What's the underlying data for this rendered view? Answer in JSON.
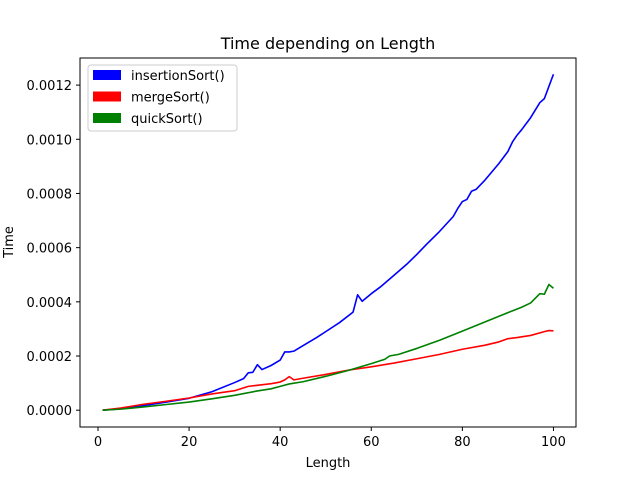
{
  "chart_data": {
    "type": "line",
    "title": "Time depending on Length",
    "xlabel": "Length",
    "ylabel": "Time",
    "xlim": [
      -3.95,
      104.95
    ],
    "ylim": [
      -6.2e-05,
      0.0013
    ],
    "xticks": [
      0,
      20,
      40,
      60,
      80,
      100
    ],
    "xtick_labels": [
      "0",
      "20",
      "40",
      "60",
      "80",
      "100"
    ],
    "yticks": [
      0,
      0.0002,
      0.0004,
      0.0006,
      0.0008,
      0.001,
      0.0012
    ],
    "ytick_labels": [
      "0.0000",
      "0.0002",
      "0.0004",
      "0.0006",
      "0.0008",
      "0.0010",
      "0.0012"
    ],
    "grid": false,
    "legend_position": "top-left",
    "series": [
      {
        "name": "insertionSort()",
        "color": "#0000ff",
        "points": [
          [
            1,
            0.0
          ],
          [
            5,
            5e-06
          ],
          [
            10,
            1.7e-05
          ],
          [
            15,
            3e-05
          ],
          [
            20,
            4.4e-05
          ],
          [
            25,
            6.8e-05
          ],
          [
            30,
            0.000102
          ],
          [
            32,
            0.000117
          ],
          [
            33,
            0.000138
          ],
          [
            34,
            0.00014
          ],
          [
            35,
            0.000168
          ],
          [
            36,
            0.00015
          ],
          [
            38,
            0.000165
          ],
          [
            40,
            0.000185
          ],
          [
            41,
            0.000215
          ],
          [
            42,
            0.000215
          ],
          [
            43,
            0.000218
          ],
          [
            45,
            0.000238
          ],
          [
            48,
            0.000268
          ],
          [
            50,
            0.00029
          ],
          [
            53,
            0.000323
          ],
          [
            56,
            0.000362
          ],
          [
            57,
            0.000426
          ],
          [
            58,
            0.000402
          ],
          [
            60,
            0.00043
          ],
          [
            62,
            0.000455
          ],
          [
            65,
            0.000498
          ],
          [
            68,
            0.000542
          ],
          [
            70,
            0.000575
          ],
          [
            72,
            0.00061
          ],
          [
            75,
            0.00066
          ],
          [
            78,
            0.000715
          ],
          [
            79,
            0.000745
          ],
          [
            80,
            0.00077
          ],
          [
            81,
            0.000778
          ],
          [
            82,
            0.000808
          ],
          [
            83,
            0.000815
          ],
          [
            85,
            0.00085
          ],
          [
            88,
            0.00091
          ],
          [
            90,
            0.000955
          ],
          [
            91,
            0.00099
          ],
          [
            92,
            0.001015
          ],
          [
            93,
            0.001035
          ],
          [
            95,
            0.00108
          ],
          [
            97,
            0.001135
          ],
          [
            98,
            0.00115
          ],
          [
            99,
            0.001195
          ],
          [
            100,
            0.00124
          ]
        ]
      },
      {
        "name": "mergeSort()",
        "color": "#ff0000",
        "points": [
          [
            1,
            0.0
          ],
          [
            5,
            8e-06
          ],
          [
            10,
            2.2e-05
          ],
          [
            15,
            3.3e-05
          ],
          [
            20,
            4.5e-05
          ],
          [
            25,
            6e-05
          ],
          [
            30,
            7.2e-05
          ],
          [
            33,
            8.8e-05
          ],
          [
            35,
            9.2e-05
          ],
          [
            38,
            9.8e-05
          ],
          [
            40,
            0.000104
          ],
          [
            41,
            0.000112
          ],
          [
            42,
            0.000124
          ],
          [
            43,
            0.000112
          ],
          [
            45,
            0.000118
          ],
          [
            50,
            0.000132
          ],
          [
            55,
            0.000148
          ],
          [
            60,
            0.00016
          ],
          [
            65,
            0.000174
          ],
          [
            70,
            0.00019
          ],
          [
            75,
            0.000206
          ],
          [
            80,
            0.000225
          ],
          [
            85,
            0.00024
          ],
          [
            88,
            0.000252
          ],
          [
            90,
            0.000264
          ],
          [
            92,
            0.000268
          ],
          [
            95,
            0.000276
          ],
          [
            98,
            0.00029
          ],
          [
            99,
            0.000294
          ],
          [
            100,
            0.000293
          ]
        ]
      },
      {
        "name": "quickSort()",
        "color": "#008000",
        "points": [
          [
            1,
            0.0
          ],
          [
            5,
            4e-06
          ],
          [
            10,
            1.2e-05
          ],
          [
            15,
            2.1e-05
          ],
          [
            20,
            3e-05
          ],
          [
            25,
            4.2e-05
          ],
          [
            30,
            5.5e-05
          ],
          [
            35,
            7.1e-05
          ],
          [
            38,
            7.9e-05
          ],
          [
            40,
            8.8e-05
          ],
          [
            42,
            9.7e-05
          ],
          [
            45,
            0.000105
          ],
          [
            50,
            0.000125
          ],
          [
            55,
            0.000147
          ],
          [
            60,
            0.000172
          ],
          [
            63,
            0.000188
          ],
          [
            64,
            0.0002
          ],
          [
            66,
            0.000206
          ],
          [
            70,
            0.000228
          ],
          [
            75,
            0.000258
          ],
          [
            80,
            0.000292
          ],
          [
            85,
            0.000326
          ],
          [
            90,
            0.00036
          ],
          [
            93,
            0.00038
          ],
          [
            95,
            0.000396
          ],
          [
            97,
            0.00043
          ],
          [
            98,
            0.000428
          ],
          [
            99,
            0.000464
          ],
          [
            100,
            0.00045
          ]
        ]
      }
    ]
  }
}
